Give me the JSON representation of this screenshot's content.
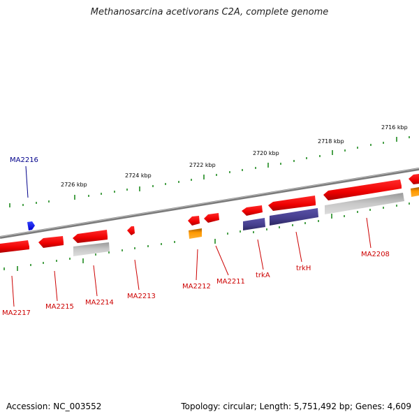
{
  "header": {
    "title": "Methanosarcina acetivorans C2A, complete genome"
  },
  "footer": {
    "accession": "Accession: NC_003552",
    "summary": "Topology: circular; Length: 5,751,492 bp; Genes: 4,609"
  },
  "scale": {
    "labels": [
      "2716 kbp",
      "2718 kbp",
      "2720 kbp",
      "2722 kbp",
      "2724 kbp",
      "2726 kbp"
    ]
  },
  "colors": {
    "forward_gene": "#ff0000",
    "reverse_gene": "#ff0000",
    "highlight_gene": "#0000ff",
    "secondary_bar": "#bbbbbb",
    "operon_bar": "#443d8b",
    "rna_gene": "#ff8c00",
    "tick": "#1f8a1f",
    "backbone": "#888888",
    "label_red": "#cc0000",
    "label_blue": "#00008b"
  },
  "genes": [
    {
      "name": "MA2216",
      "color": "blue"
    },
    {
      "name": "MA2217",
      "color": "red"
    },
    {
      "name": "MA2215",
      "color": "red"
    },
    {
      "name": "MA2214",
      "color": "red"
    },
    {
      "name": "MA2213",
      "color": "red"
    },
    {
      "name": "MA2212",
      "color": "red"
    },
    {
      "name": "MA2211",
      "color": "red"
    },
    {
      "name": "trkA",
      "color": "red"
    },
    {
      "name": "trkH",
      "color": "red"
    },
    {
      "name": "MA2208",
      "color": "red"
    }
  ]
}
